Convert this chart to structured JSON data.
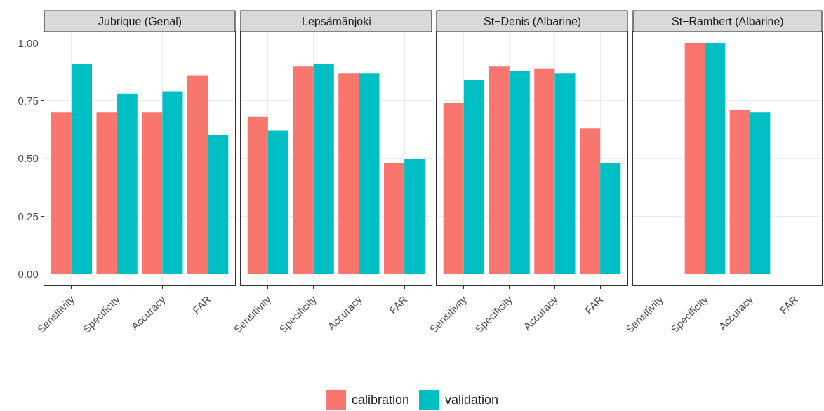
{
  "chart_data": [
    {
      "type": "bar",
      "title": "Jubrique (Genal)",
      "categories": [
        "Sensitivity",
        "Specificity",
        "Accuracy",
        "FAR"
      ],
      "ylim": [
        -0.05,
        1.05
      ],
      "yticks": [
        {
          "value": 0,
          "label": "0.00"
        },
        {
          "value": 0.25,
          "label": "0.25"
        },
        {
          "value": 0.5,
          "label": "0.50"
        },
        {
          "value": 0.75,
          "label": "0.75"
        },
        {
          "value": 1,
          "label": "1.00"
        }
      ],
      "grid": true,
      "legend": "bottom",
      "series": [
        {
          "name": "calibration",
          "color": "#f8766d",
          "values": [
            0.7,
            0.7,
            0.7,
            0.86
          ]
        },
        {
          "name": "validation",
          "color": "#00bfc4",
          "values": [
            0.91,
            0.78,
            0.79,
            0.6
          ]
        }
      ]
    },
    {
      "type": "bar",
      "title": "Lepsämänjoki",
      "categories": [
        "Sensitivity",
        "Specificity",
        "Accuracy",
        "FAR"
      ],
      "ylim": [
        -0.05,
        1.05
      ],
      "yticks": [
        {
          "value": 0,
          "label": null
        },
        {
          "value": 0.25,
          "label": null
        },
        {
          "value": 0.5,
          "label": null
        },
        {
          "value": 0.75,
          "label": null
        },
        {
          "value": 1,
          "label": null
        }
      ],
      "grid": true,
      "tick_labels": "x",
      "series": [
        {
          "color": "#f8766d",
          "values": [
            0.68,
            0.9,
            0.87,
            0.48
          ]
        },
        {
          "color": "#00bfc4",
          "values": [
            0.62,
            0.91,
            0.87,
            0.5
          ]
        }
      ]
    },
    {
      "type": "bar",
      "title": "St−Denis (Albarine)",
      "categories": [
        "Sensitivity",
        "Specificity",
        "Accuracy",
        "FAR"
      ],
      "ylim": [
        -0.05,
        1.05
      ],
      "yticks": [
        {
          "value": 0,
          "label": null
        },
        {
          "value": 0.25,
          "label": null
        },
        {
          "value": 0.5,
          "label": null
        },
        {
          "value": 0.75,
          "label": null
        },
        {
          "value": 1,
          "label": null
        }
      ],
      "grid": true,
      "tick_labels": "x",
      "series": [
        {
          "color": "#f8766d",
          "values": [
            0.74,
            0.9,
            0.89,
            0.63
          ]
        },
        {
          "color": "#00bfc4",
          "values": [
            0.84,
            0.88,
            0.87,
            0.48
          ]
        }
      ]
    },
    {
      "type": "bar",
      "title": "St−Rambert (Albarine)",
      "categories": [
        "Sensitivity",
        "Specificity",
        "Accuracy",
        "FAR"
      ],
      "ylim": [
        -0.05,
        1.05
      ],
      "yticks": [
        {
          "value": 0,
          "label": null
        },
        {
          "value": 0.25,
          "label": null
        },
        {
          "value": 0.5,
          "label": null
        },
        {
          "value": 0.75,
          "label": null
        },
        {
          "value": 1,
          "label": null
        }
      ],
      "grid": true,
      "tick_labels": "x",
      "series": [
        {
          "color": "#f8766d",
          "values": [
            0,
            1,
            0.71,
            null
          ]
        },
        {
          "color": "#00bfc4",
          "values": [
            0,
            1,
            0.7,
            null
          ]
        }
      ]
    }
  ]
}
